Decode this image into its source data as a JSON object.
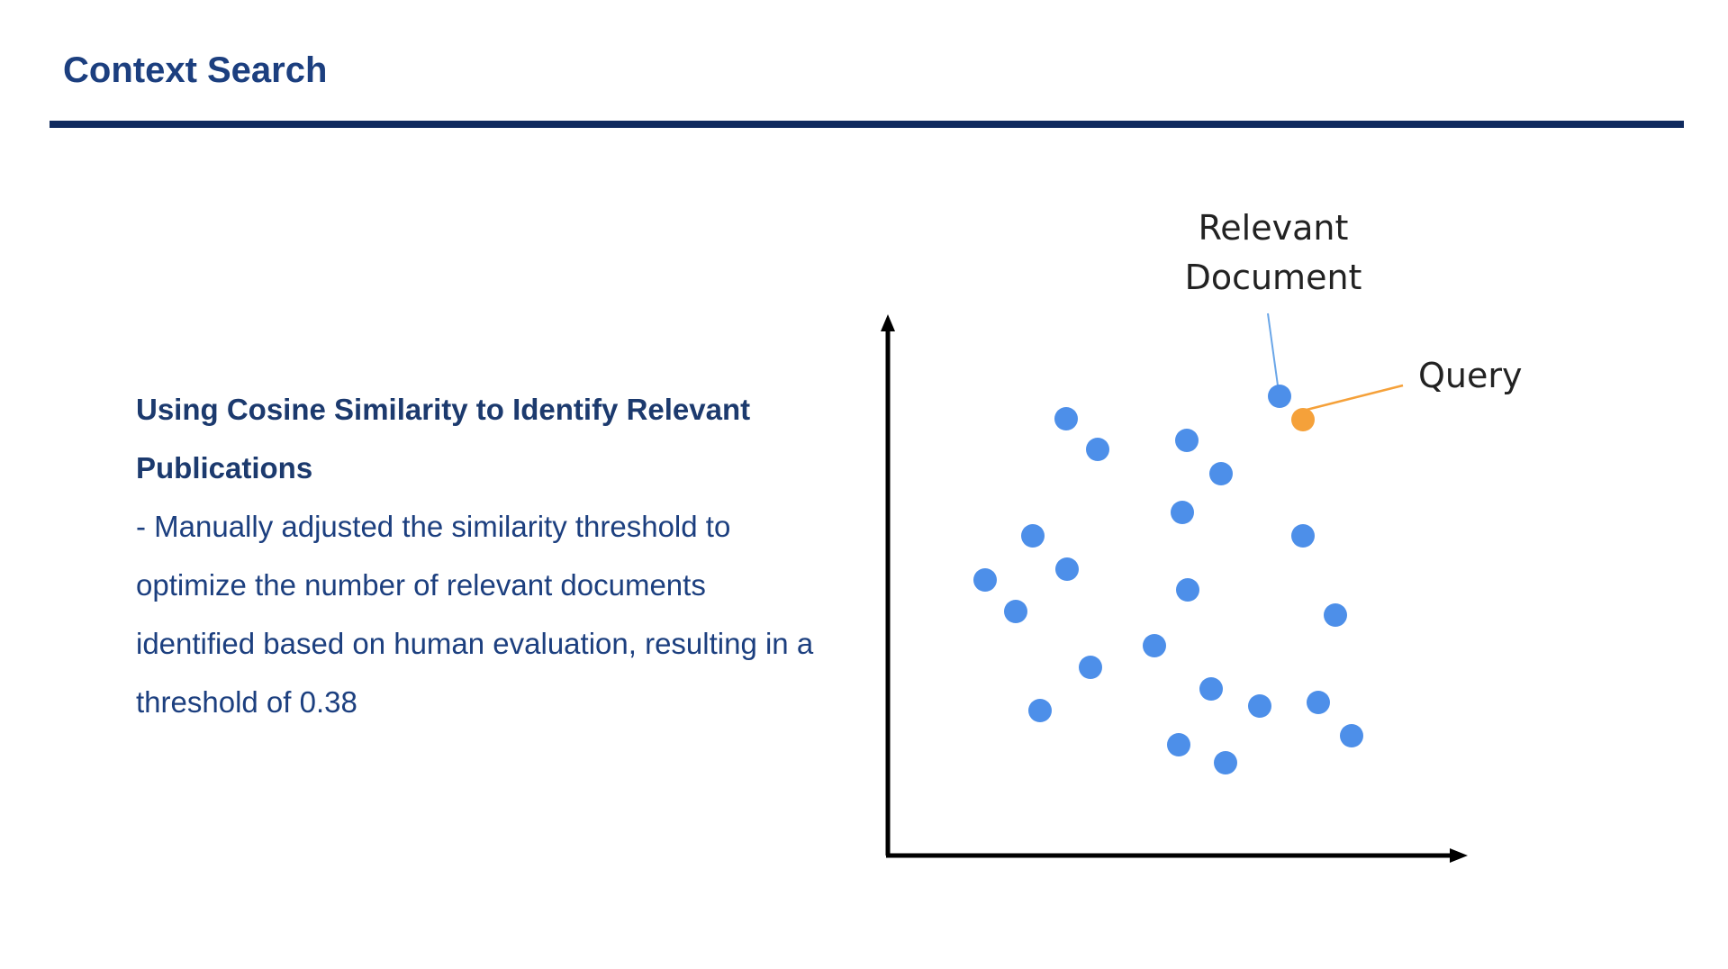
{
  "slide": {
    "title": "Context Search",
    "subheading": "Using Cosine Similarity to Identify Relevant Publications",
    "body": "- Manually adjusted the similarity threshold to optimize the number of relevant documents identified based on human evaluation, resulting in a threshold of 0.38"
  },
  "diagram": {
    "labels": {
      "relevant_line1": "Relevant",
      "relevant_line2": "Document",
      "query": "Query"
    },
    "colors": {
      "document_point": "#4d8fe9",
      "query_point": "#f5a13a",
      "axis": "#000000",
      "callout_relevant": "#6aa6e8",
      "callout_query": "#f5a13a"
    }
  }
}
